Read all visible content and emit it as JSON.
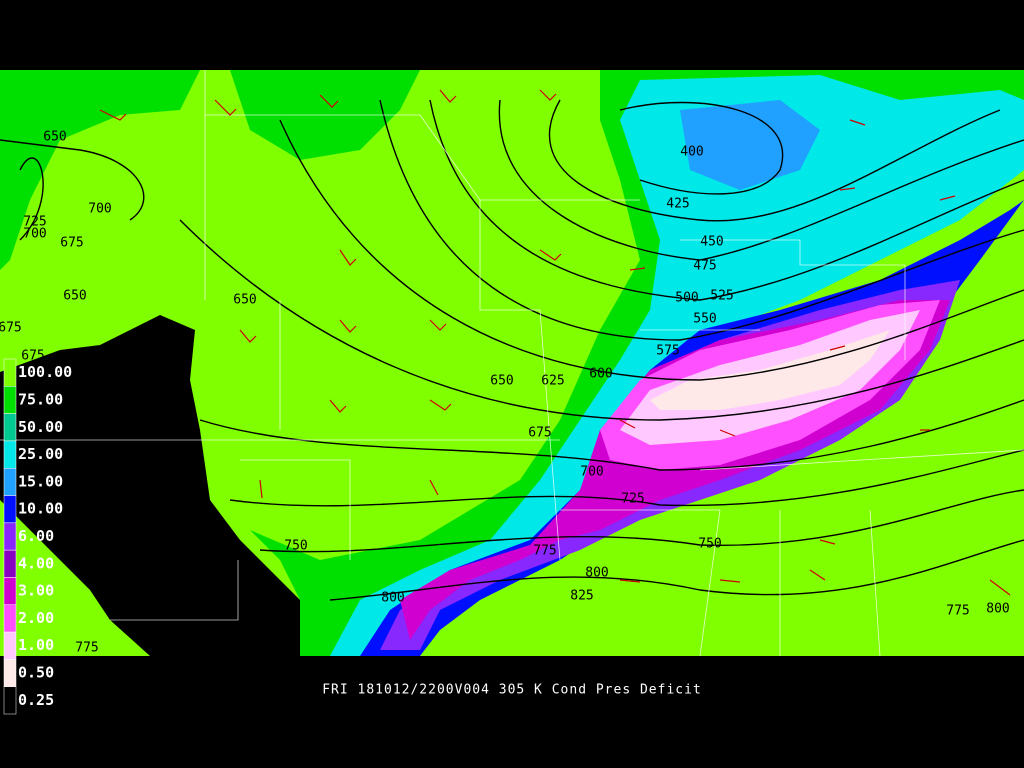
{
  "caption": "FRI 181012/2200V004 305 K Cond Pres Deficit",
  "legend": [
    {
      "label": "100.00",
      "color": "#80ff00"
    },
    {
      "label": "75.00",
      "color": "#00e000"
    },
    {
      "label": "50.00",
      "color": "#00c890"
    },
    {
      "label": "25.00",
      "color": "#00e8e8"
    },
    {
      "label": "15.00",
      "color": "#20a0ff"
    },
    {
      "label": "10.00",
      "color": "#0010ff"
    },
    {
      "label": "6.00",
      "color": "#8828ff"
    },
    {
      "label": "4.00",
      "color": "#8800c0"
    },
    {
      "label": "3.00",
      "color": "#d000d0"
    },
    {
      "label": "2.00",
      "color": "#ff50ff"
    },
    {
      "label": "1.00",
      "color": "#ffc8ff"
    },
    {
      "label": "0.50",
      "color": "#ffe8e8"
    },
    {
      "label": "0.25",
      "color": "#000000"
    }
  ],
  "contour_labels": [
    "650",
    "700",
    "725",
    "700",
    "675",
    "650",
    "650",
    "675",
    "675",
    "650",
    "625",
    "600",
    "675",
    "700",
    "725",
    "750",
    "775",
    "800",
    "825",
    "800",
    "750",
    "775",
    "800",
    "400",
    "425",
    "450",
    "475",
    "500",
    "525",
    "550",
    "575",
    "775"
  ]
}
